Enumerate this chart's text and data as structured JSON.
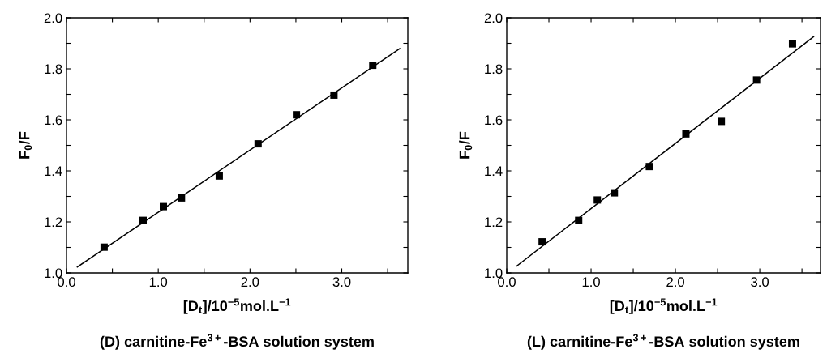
{
  "chart_data": [
    {
      "type": "scatter",
      "title": "(D) carnitine-Fe$^{3+}$-BSA solution system",
      "xlabel": "[D$_{t}$]/10$^{−5}$mol.L$^{−1}$",
      "ylabel": "F$_{0}$/F",
      "xlim": [
        0,
        3.72
      ],
      "ylim": [
        1.0,
        2.0
      ],
      "xticks": [
        {
          "value": 0,
          "label": "0.0"
        },
        {
          "value": 0.5,
          "label": null
        },
        {
          "value": 1,
          "label": "1.0"
        },
        {
          "value": 1.5,
          "label": null
        },
        {
          "value": 2,
          "label": "2.0"
        },
        {
          "value": 2.5,
          "label": null
        },
        {
          "value": 3,
          "label": "3.0"
        },
        {
          "value": 3.5,
          "label": null
        }
      ],
      "yticks": [
        {
          "value": 1,
          "label": "1.0"
        },
        {
          "value": 1.1,
          "label": null
        },
        {
          "value": 1.2,
          "label": "1.2"
        },
        {
          "value": 1.3,
          "label": null
        },
        {
          "value": 1.4,
          "label": "1.4"
        },
        {
          "value": 1.5,
          "label": null
        },
        {
          "value": 1.6,
          "label": "1.6"
        },
        {
          "value": 1.7,
          "label": null
        },
        {
          "value": 1.8,
          "label": "1.8"
        },
        {
          "value": 1.9,
          "label": null
        },
        {
          "value": 2,
          "label": "2.0"
        }
      ],
      "grid": false,
      "series": [
        {
          "marker": "square",
          "color": "#000000",
          "x": [
            0.41,
            0.835,
            1.056,
            1.253,
            1.665,
            2.088,
            2.506,
            2.915,
            3.338
          ],
          "values": [
            1.101,
            1.206,
            1.26,
            1.294,
            1.38,
            1.506,
            1.62,
            1.697,
            1.814
          ]
        },
        {
          "type": "line",
          "marker": "none",
          "color": "#000000",
          "x": [
            0.118,
            3.632
          ],
          "values": [
            1.023,
            1.879
          ]
        }
      ]
    },
    {
      "type": "scatter",
      "title": "(L) carnitine-Fe$^{3+}$-BSA solution system",
      "xlabel": "[D$_{t}$]/10$^{−5}$mol.L$^{−1}$",
      "ylabel": "F$_{0}$/F",
      "xlim": [
        0,
        3.72
      ],
      "ylim": [
        1.0,
        2.0
      ],
      "xticks": [
        {
          "value": 0,
          "label": "0.0"
        },
        {
          "value": 0.5,
          "label": null
        },
        {
          "value": 1,
          "label": "1.0"
        },
        {
          "value": 1.5,
          "label": null
        },
        {
          "value": 2,
          "label": "2.0"
        },
        {
          "value": 2.5,
          "label": null
        },
        {
          "value": 3,
          "label": "3.0"
        },
        {
          "value": 3.5,
          "label": null
        }
      ],
      "yticks": [
        {
          "value": 1,
          "label": "1.0"
        },
        {
          "value": 1.1,
          "label": null
        },
        {
          "value": 1.2,
          "label": "1.2"
        },
        {
          "value": 1.3,
          "label": null
        },
        {
          "value": 1.4,
          "label": "1.4"
        },
        {
          "value": 1.5,
          "label": null
        },
        {
          "value": 1.6,
          "label": "1.6"
        },
        {
          "value": 1.7,
          "label": null
        },
        {
          "value": 1.8,
          "label": "1.8"
        },
        {
          "value": 1.9,
          "label": null
        },
        {
          "value": 2,
          "label": "2.0"
        }
      ],
      "grid": false,
      "series": [
        {
          "marker": "square",
          "color": "#000000",
          "x": [
            0.42,
            0.853,
            1.074,
            1.276,
            1.691,
            2.124,
            2.544,
            2.962,
            3.388
          ],
          "values": [
            1.122,
            1.206,
            1.286,
            1.314,
            1.417,
            1.545,
            1.594,
            1.756,
            1.898
          ]
        },
        {
          "type": "line",
          "marker": "none",
          "color": "#000000",
          "x": [
            0.118,
            3.638
          ],
          "values": [
            1.027,
            1.926
          ]
        }
      ]
    }
  ]
}
